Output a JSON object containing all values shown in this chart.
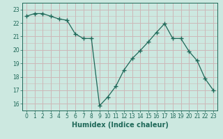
{
  "x": [
    0,
    1,
    2,
    3,
    4,
    5,
    6,
    7,
    8,
    9,
    10,
    11,
    12,
    13,
    14,
    15,
    16,
    17,
    18,
    19,
    20,
    21,
    22,
    23
  ],
  "y": [
    22.5,
    22.7,
    22.7,
    22.5,
    22.3,
    22.2,
    21.2,
    20.85,
    20.85,
    15.85,
    16.5,
    17.3,
    18.5,
    19.35,
    19.95,
    20.6,
    21.3,
    21.95,
    20.85,
    20.85,
    19.9,
    19.2,
    17.85,
    17.0
  ],
  "xlabel": "Humidex (Indice chaleur)",
  "bg_color": "#cce8e0",
  "grid_color": "#ccb8b8",
  "line_color": "#1e6858",
  "ylim": [
    15.5,
    23.5
  ],
  "xlim": [
    -0.5,
    23.5
  ],
  "yticks": [
    16,
    17,
    18,
    19,
    20,
    21,
    22,
    23
  ],
  "xticks": [
    0,
    1,
    2,
    3,
    4,
    5,
    6,
    7,
    8,
    9,
    10,
    11,
    12,
    13,
    14,
    15,
    16,
    17,
    18,
    19,
    20,
    21,
    22,
    23
  ],
  "tick_fontsize": 5.5,
  "xlabel_fontsize": 7.0
}
